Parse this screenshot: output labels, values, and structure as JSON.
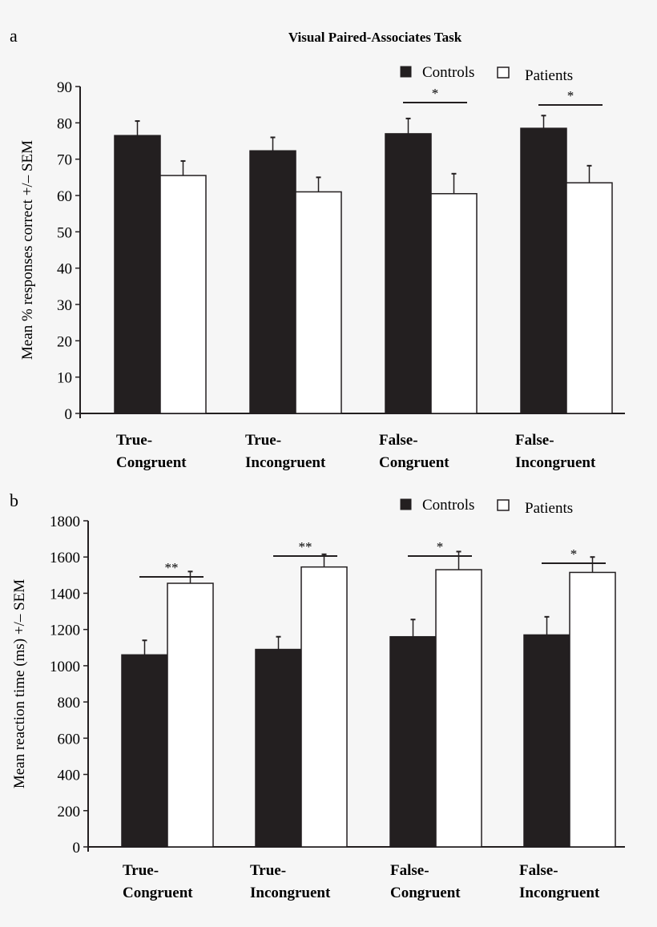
{
  "chart_data": [
    {
      "panel": "a",
      "type": "bar",
      "title": "Visual Paired-Associates Task",
      "ylabel": "Mean % responses correct +/– SEM",
      "ylim": [
        0,
        90
      ],
      "yticks": [
        0,
        10,
        20,
        30,
        40,
        50,
        60,
        70,
        80,
        90
      ],
      "categories": [
        [
          "True-",
          "Congruent"
        ],
        [
          "True-",
          "Incongruent"
        ],
        [
          "False-",
          "Congruent"
        ],
        [
          "False-",
          "Incongruent"
        ]
      ],
      "series": [
        {
          "name": "Controls",
          "color": "#231f20",
          "values": [
            76.5,
            72.3,
            77.0,
            78.5
          ],
          "sem": [
            4.0,
            3.7,
            4.2,
            3.5
          ]
        },
        {
          "name": "Patients",
          "color": "#ffffff",
          "values": [
            65.5,
            61.0,
            60.5,
            63.5
          ],
          "sem": [
            4.0,
            4.0,
            5.5,
            4.7
          ]
        }
      ],
      "significance": [
        "",
        "",
        "*",
        "*"
      ],
      "legend": "top-right",
      "grid": false
    },
    {
      "panel": "b",
      "type": "bar",
      "title": "",
      "ylabel": "Mean reaction time (ms)  +/– SEM",
      "ylim": [
        0,
        1800
      ],
      "yticks": [
        0,
        200,
        400,
        600,
        800,
        1000,
        1200,
        1400,
        1600,
        1800
      ],
      "categories": [
        [
          "True-",
          "Congruent"
        ],
        [
          "True-",
          "Incongruent"
        ],
        [
          "False-",
          "Congruent"
        ],
        [
          "False-",
          "Incongruent"
        ]
      ],
      "series": [
        {
          "name": "Controls",
          "color": "#231f20",
          "values": [
            1060,
            1090,
            1160,
            1170
          ],
          "sem": [
            80,
            70,
            95,
            100
          ]
        },
        {
          "name": "Patients",
          "color": "#ffffff",
          "values": [
            1455,
            1545,
            1530,
            1515
          ],
          "sem": [
            65,
            70,
            100,
            85
          ]
        }
      ],
      "significance": [
        "**",
        "**",
        "*",
        "*"
      ],
      "legend": "top-right",
      "grid": false
    }
  ]
}
